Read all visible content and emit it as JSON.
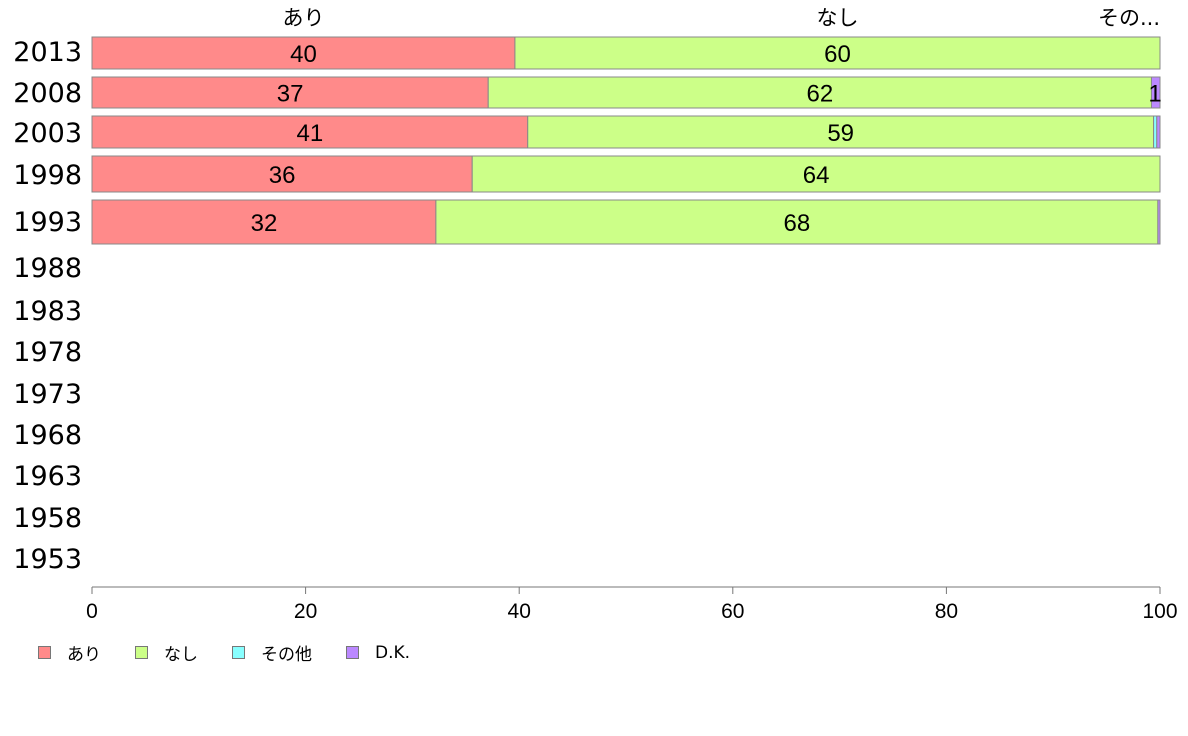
{
  "chart_data": {
    "type": "bar",
    "orientation": "horizontal",
    "stacked": true,
    "categories": [
      "2013",
      "2008",
      "2003",
      "1998",
      "1993",
      "1988",
      "1983",
      "1978",
      "1973",
      "1968",
      "1963",
      "1958",
      "1953"
    ],
    "series": [
      {
        "name": "あり",
        "color": "#ff8a8a",
        "values": [
          39.6,
          37.1,
          40.8,
          35.6,
          32.2,
          null,
          null,
          null,
          null,
          null,
          null,
          null,
          null
        ],
        "labels": [
          "40",
          "37",
          "41",
          "36",
          "32",
          "",
          "",
          "",
          "",
          "",
          "",
          "",
          ""
        ]
      },
      {
        "name": "なし",
        "color": "#ccff88",
        "values": [
          60.4,
          62.1,
          58.6,
          64.4,
          67.6,
          null,
          null,
          null,
          null,
          null,
          null,
          null,
          null
        ],
        "labels": [
          "60",
          "62",
          "59",
          "64",
          "68",
          "",
          "",
          "",
          "",
          "",
          "",
          "",
          ""
        ]
      },
      {
        "name": "その他",
        "color": "#88ffff",
        "values": [
          0,
          0,
          0.3,
          0,
          0,
          null,
          null,
          null,
          null,
          null,
          null,
          null,
          null
        ],
        "labels": [
          "",
          "",
          "",
          "",
          "",
          "",
          "",
          "",
          "",
          "",
          "",
          "",
          ""
        ]
      },
      {
        "name": "D.K.",
        "color": "#bb88ff",
        "values": [
          0,
          0.8,
          0.3,
          0,
          0.2,
          null,
          null,
          null,
          null,
          null,
          null,
          null,
          null
        ],
        "labels": [
          "",
          "1",
          "",
          "",
          "",
          "",
          "",
          "",
          "",
          "",
          "",
          "",
          ""
        ]
      }
    ],
    "top_labels": [
      "あり",
      "なし",
      "その..."
    ],
    "xlim": [
      0,
      100
    ],
    "xticks": [
      0,
      20,
      40,
      60,
      80,
      100
    ],
    "legend_position": "bottom-left",
    "grid": false
  }
}
